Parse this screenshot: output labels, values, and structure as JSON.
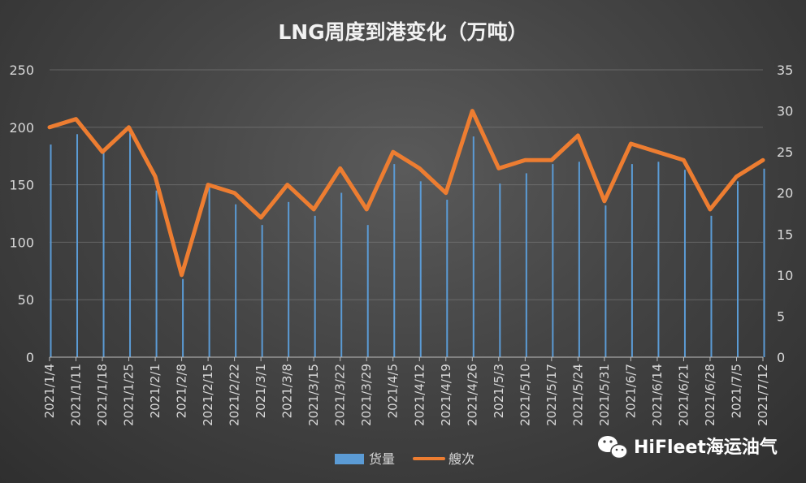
{
  "chart_data": {
    "type": "bar+line",
    "title": "LNG周度到港变化（万吨）",
    "categories": [
      "2021/1/4",
      "2021/1/11",
      "2021/1/18",
      "2021/1/25",
      "2021/2/1",
      "2021/2/8",
      "2021/2/15",
      "2021/2/22",
      "2021/3/1",
      "2021/3/8",
      "2021/3/15",
      "2021/3/22",
      "2021/3/29",
      "2021/4/5",
      "2021/4/12",
      "2021/4/19",
      "2021/4/26",
      "2021/5/3",
      "2021/5/10",
      "2021/5/17",
      "2021/5/24",
      "2021/5/31",
      "2021/6/7",
      "2021/6/14",
      "2021/6/21",
      "2021/6/28",
      "2021/7/5",
      "2021/7/12"
    ],
    "left_axis": {
      "ylim": [
        0,
        250
      ],
      "ticks": [
        "0",
        "50",
        "100",
        "150",
        "200",
        "250"
      ]
    },
    "right_axis": {
      "ylim": [
        0,
        35
      ],
      "ticks": [
        "0",
        "5",
        "10",
        "15",
        "20",
        "25",
        "30",
        "35"
      ]
    },
    "series": [
      {
        "name": "货量",
        "type": "bar",
        "axis": "left",
        "color": "#5b9bd5",
        "values": [
          185,
          194,
          178,
          195,
          145,
          68,
          150,
          133,
          115,
          135,
          123,
          143,
          115,
          168,
          153,
          137,
          192,
          151,
          160,
          168,
          170,
          132,
          168,
          170,
          163,
          123,
          153,
          164
        ]
      },
      {
        "name": "艘次",
        "type": "line",
        "axis": "right",
        "color": "#ed7d31",
        "values": [
          28,
          29,
          25,
          28,
          22,
          10,
          21,
          20,
          17,
          21,
          18,
          23,
          18,
          25,
          23,
          20,
          30,
          23,
          24,
          24,
          27,
          19,
          26,
          25,
          24,
          18,
          22,
          24
        ]
      }
    ],
    "grid": true,
    "legend": "bottom-center"
  },
  "watermark": {
    "text": "HiFleet海运油气"
  }
}
